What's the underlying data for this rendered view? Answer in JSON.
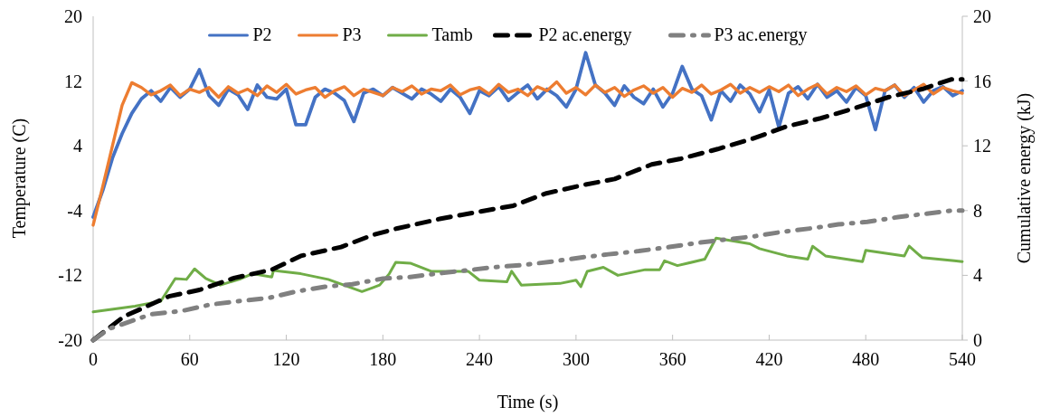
{
  "chart_data": {
    "type": "line",
    "xlabel": "Time (s)",
    "ylabel": "Temperature (C)",
    "y2label": "Cumulative energy (kJ)",
    "xlim": [
      0,
      540
    ],
    "xticks": [
      0,
      60,
      120,
      180,
      240,
      300,
      360,
      420,
      480,
      540
    ],
    "ylim": [
      -20,
      20
    ],
    "yticks": [
      -20,
      -12,
      -4,
      4,
      12,
      20
    ],
    "y2lim": [
      0,
      20
    ],
    "y2ticks": [
      0,
      4,
      8,
      12,
      16,
      20
    ],
    "grid": false,
    "legend": "top",
    "marker": "none",
    "series": [
      {
        "name": "P2",
        "color": "#4472c4",
        "line_style": "solid",
        "x": [
          0,
          6,
          12,
          18,
          24,
          30,
          36,
          42,
          48,
          54,
          60,
          66,
          72,
          78,
          84,
          90,
          96,
          102,
          108,
          114,
          120,
          126,
          132,
          138,
          144,
          150,
          156,
          162,
          168,
          174,
          180,
          186,
          192,
          198,
          204,
          210,
          216,
          222,
          228,
          234,
          240,
          246,
          252,
          258,
          264,
          270,
          276,
          282,
          288,
          294,
          300,
          306,
          312,
          318,
          324,
          330,
          336,
          342,
          348,
          354,
          360,
          366,
          372,
          378,
          384,
          390,
          396,
          402,
          408,
          414,
          420,
          426,
          432,
          438,
          444,
          450,
          456,
          462,
          468,
          474,
          480,
          486,
          492,
          498,
          504,
          510,
          516,
          522,
          528,
          534,
          540
        ],
        "values": [
          -4.8,
          -1.5,
          2.5,
          5.5,
          8,
          9.8,
          10.8,
          9.5,
          11.2,
          10,
          11,
          13.4,
          10.2,
          9,
          11,
          10.3,
          8.5,
          11.5,
          10,
          9.8,
          11,
          6.6,
          6.6,
          10,
          11,
          10.5,
          9.6,
          7,
          10.5,
          11,
          10.2,
          11.2,
          10.5,
          9.8,
          11,
          10.4,
          9.5,
          11,
          10,
          8,
          10.8,
          10.2,
          11.3,
          9.6,
          10.6,
          11.5,
          9.8,
          11,
          10.2,
          8.8,
          11,
          15.5,
          11.5,
          10.5,
          9,
          11.4,
          10,
          9.2,
          11,
          8.8,
          10.5,
          13.8,
          11,
          10.2,
          7.2,
          10.8,
          9.5,
          11.5,
          10.4,
          8.2,
          10.9,
          6.3,
          10.5,
          11.3,
          9.8,
          11.6,
          10,
          10.8,
          9.4,
          11.2,
          10.2,
          6,
          10.8,
          11.5,
          10,
          11.2,
          9.4,
          10.8,
          11.3,
          10.2,
          10.8
        ]
      },
      {
        "name": "P3",
        "color": "#ed7d31",
        "line_style": "solid",
        "x": [
          0,
          6,
          12,
          18,
          24,
          30,
          36,
          42,
          48,
          54,
          60,
          66,
          72,
          78,
          84,
          90,
          96,
          102,
          108,
          114,
          120,
          126,
          132,
          138,
          144,
          150,
          156,
          162,
          168,
          174,
          180,
          186,
          192,
          198,
          204,
          210,
          216,
          222,
          228,
          234,
          240,
          246,
          252,
          258,
          264,
          270,
          276,
          282,
          288,
          294,
          300,
          306,
          312,
          318,
          324,
          330,
          336,
          342,
          348,
          354,
          360,
          366,
          372,
          378,
          384,
          390,
          396,
          402,
          408,
          414,
          420,
          426,
          432,
          438,
          444,
          450,
          456,
          462,
          468,
          474,
          480,
          486,
          492,
          498,
          504,
          510,
          516,
          522,
          528,
          534,
          540
        ],
        "values": [
          -5.8,
          -1,
          4,
          9,
          11.8,
          11.2,
          10.3,
          10.8,
          11.5,
          10.2,
          11,
          10.6,
          11.2,
          10,
          11.3,
          10.5,
          11,
          10.2,
          11.4,
          10.6,
          11.6,
          10.4,
          10.9,
          11.2,
          10,
          10.8,
          11.3,
          10.2,
          11,
          10.6,
          10.2,
          11.2,
          10.7,
          11.4,
          10.4,
          11,
          10.8,
          11.5,
          10.3,
          10.9,
          11.2,
          10.4,
          11.6,
          10.6,
          11,
          10.2,
          11.3,
          10.8,
          11.9,
          10.5,
          11.2,
          10.3,
          11.5,
          10.6,
          11.2,
          10.1,
          10.9,
          11.4,
          10.5,
          11.2,
          10,
          11.1,
          10.6,
          11.5,
          10.4,
          10.9,
          11.6,
          10.5,
          11.2,
          10.6,
          11.3,
          10.7,
          11.5,
          10.2,
          11,
          11.6,
          10.4,
          11.2,
          10.7,
          11.4,
          10.3,
          11.1,
          10.8,
          11.5,
          10.2,
          10.9,
          11.6,
          10.4,
          11.2,
          10.8,
          10.5
        ]
      },
      {
        "name": "Tamb",
        "color": "#70ad47",
        "line_style": "solid",
        "x": [
          0,
          26,
          42,
          51,
          58,
          63,
          70,
          79,
          92,
          99,
          111,
          112,
          129,
          146,
          167,
          174,
          178,
          184,
          188,
          197,
          210,
          233,
          240,
          257,
          260,
          266,
          290,
          300,
          303,
          307,
          317,
          326,
          343,
          352,
          355,
          363,
          380,
          387,
          408,
          414,
          431,
          444,
          447,
          455,
          478,
          480,
          504,
          507,
          515,
          535,
          540
        ],
        "values": [
          -16.5,
          -15.8,
          -15.2,
          -12.4,
          -12.5,
          -11.2,
          -12.4,
          -13.2,
          -12.4,
          -11.8,
          -12.2,
          -11.4,
          -11.8,
          -12.5,
          -14,
          -13.5,
          -13.2,
          -11.8,
          -10.4,
          -10.5,
          -11.5,
          -11.5,
          -12.6,
          -12.8,
          -11.5,
          -13.2,
          -13,
          -12.6,
          -13.4,
          -11.5,
          -11,
          -12,
          -11.3,
          -11.3,
          -10.2,
          -10.8,
          -10,
          -7.4,
          -8.1,
          -8.7,
          -9.6,
          -10,
          -8.4,
          -9.6,
          -10.3,
          -8.9,
          -9.6,
          -8.4,
          -9.8,
          -10.2,
          -10.3
        ]
      },
      {
        "name": "P2 ac.energy",
        "color": "#000000",
        "line_style": "dashed",
        "axis": "y2",
        "x": [
          0,
          19,
          47,
          66,
          88,
          111,
          129,
          154,
          174,
          189,
          216,
          238,
          261,
          281,
          303,
          324,
          347,
          365,
          388,
          410,
          431,
          452,
          474,
          494,
          515,
          533,
          540
        ],
        "values": [
          0,
          1.45,
          2.7,
          3.1,
          3.85,
          4.35,
          5.2,
          5.75,
          6.5,
          6.9,
          7.5,
          7.9,
          8.3,
          9.05,
          9.55,
          9.95,
          10.85,
          11.2,
          11.8,
          12.45,
          13.2,
          13.7,
          14.35,
          15,
          15.5,
          16.1,
          16.1
        ]
      },
      {
        "name": "P3 ac.energy",
        "color": "#808080",
        "line_style": "dashdot",
        "axis": "y2",
        "x": [
          0,
          10,
          36,
          55,
          73,
          90,
          109,
          126,
          144,
          161,
          180,
          197,
          213,
          249,
          268,
          285,
          303,
          320,
          339,
          358,
          375,
          392,
          410,
          429,
          446,
          463,
          481,
          500,
          517,
          533,
          540
        ],
        "values": [
          0,
          0.7,
          1.6,
          1.8,
          2.2,
          2.4,
          2.6,
          3,
          3.3,
          3.45,
          3.8,
          3.9,
          4.1,
          4.5,
          4.65,
          4.85,
          5.1,
          5.3,
          5.5,
          5.75,
          6,
          6.2,
          6.4,
          6.7,
          6.9,
          7.15,
          7.3,
          7.6,
          7.8,
          8,
          8
        ]
      }
    ]
  }
}
